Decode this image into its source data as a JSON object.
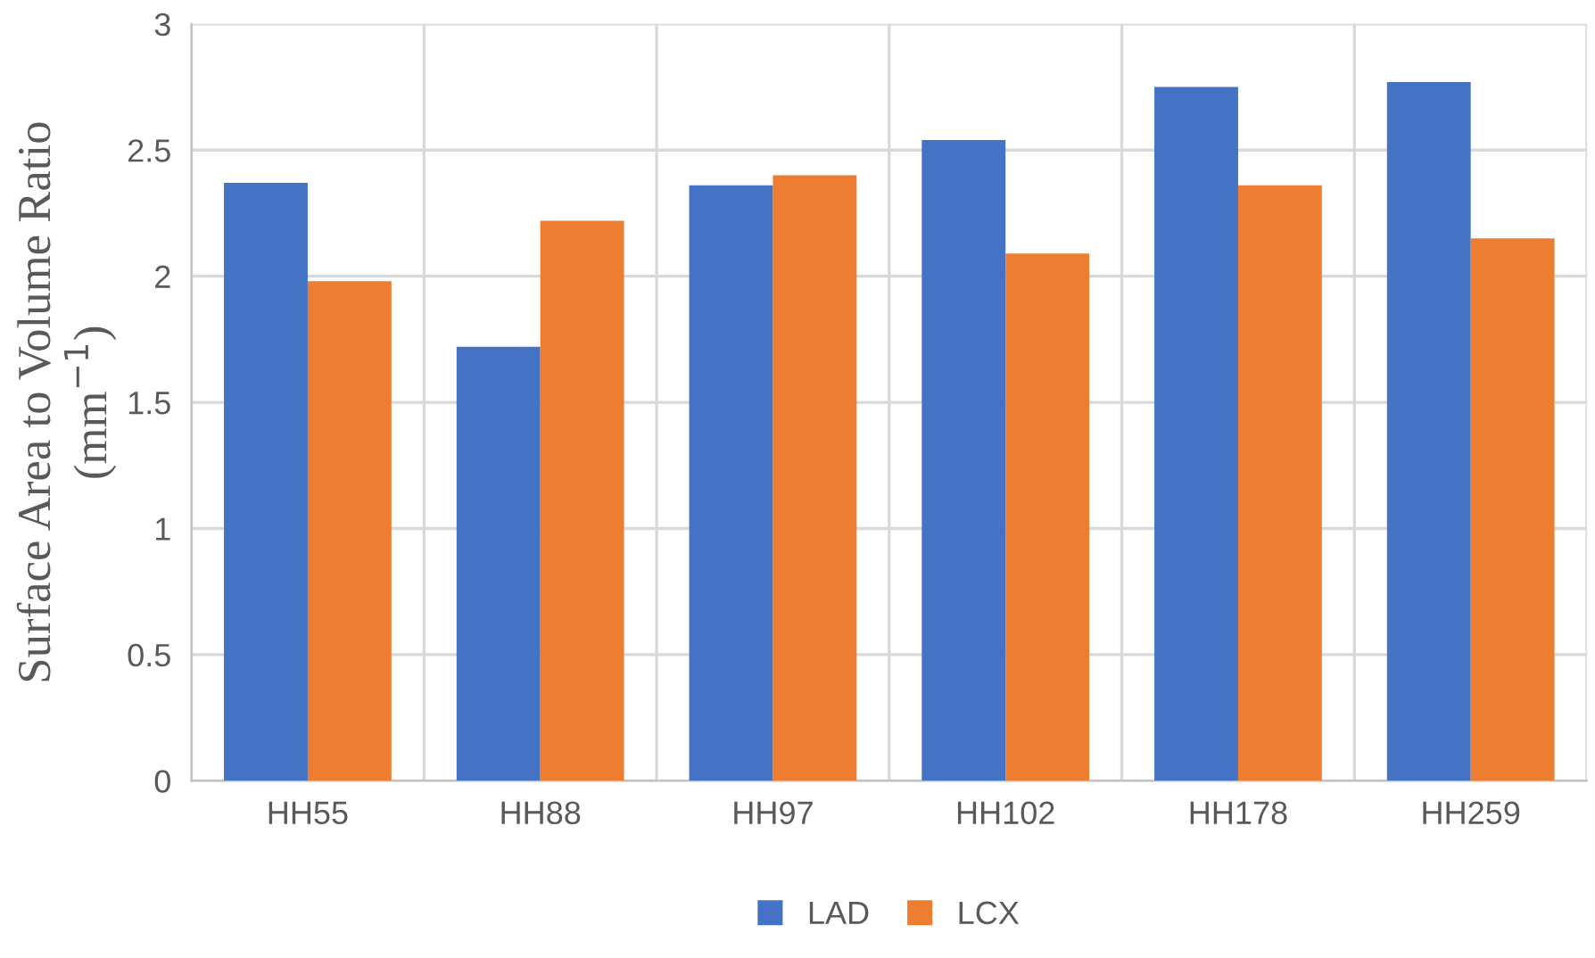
{
  "chart_data": {
    "type": "bar",
    "ylabel": "Surface Area to Volume Ratio\n(mm$^{−1}$)",
    "categories": [
      "HH55",
      "HH88",
      "HH97",
      "HH102",
      "HH178",
      "HH259"
    ],
    "series": [
      {
        "name": "LAD",
        "color": "#4472c4",
        "values": [
          2.37,
          1.72,
          2.36,
          2.54,
          2.75,
          2.77
        ]
      },
      {
        "name": "LCX",
        "color": "#ed7d31",
        "values": [
          1.98,
          2.22,
          2.4,
          2.09,
          2.36,
          2.15
        ]
      }
    ],
    "ylim": [
      0,
      3
    ],
    "yticks": [
      0,
      0.5,
      1,
      1.5,
      2,
      2.5,
      3
    ],
    "grid": true,
    "legend": "bottom"
  }
}
